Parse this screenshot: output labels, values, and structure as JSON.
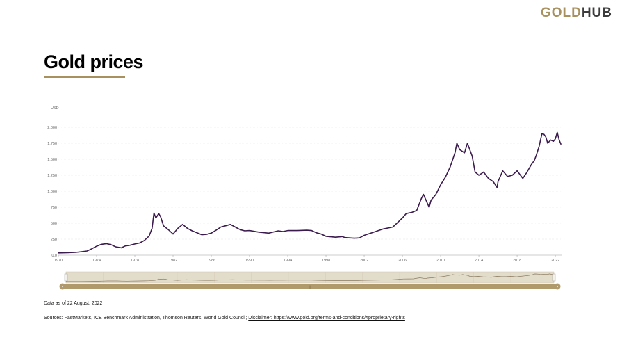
{
  "brand": {
    "part1": "GOLD",
    "part2": "HUB"
  },
  "page_title": "Gold prices",
  "notes": {
    "data_as_of": "Data as of 22 August, 2022",
    "sources_prefix": "Sources: FastMarkets, ICE Benchmark Administration, Thomson Reuters, World Gold Council; ",
    "disclaimer_link": "Disclaimer: https://www.gold.org/terms-and-conditions/#proprietary-rights"
  },
  "navigator": {
    "handle_label": "|||"
  },
  "colors": {
    "line": "#3b1a4e",
    "accent": "#a8915e",
    "navigator_bg": "#e2dccb",
    "scrollbar": "#b09a6b"
  },
  "chart_data": {
    "type": "line",
    "ylabel": "USD",
    "ylim": [
      0,
      2250
    ],
    "xlim": [
      1970,
      2022.65
    ],
    "y_ticks": [
      0,
      250,
      500,
      750,
      1000,
      1250,
      1500,
      1750,
      2000
    ],
    "y_tick_labels": [
      "0.0",
      "250",
      "500",
      "750",
      "1,000",
      "1,250",
      "1,500",
      "1,750",
      "2,000"
    ],
    "x_ticks": [
      1970,
      1974,
      1978,
      1982,
      1986,
      1990,
      1994,
      1998,
      2002,
      2006,
      2010,
      2014,
      2018,
      2022
    ],
    "x_tick_labels": [
      "1970",
      "1974",
      "1978",
      "1982",
      "1986",
      "1990",
      "1994",
      "1998",
      "2002",
      "2006",
      "2010",
      "2014",
      "2018",
      "2022"
    ],
    "grid": true,
    "legend": "none",
    "series": [
      {
        "x": [
          1970.0,
          1971.0,
          1971.8,
          1972.5,
          1973.0,
          1973.5,
          1974.0,
          1974.5,
          1975.0,
          1975.5,
          1976.0,
          1976.6,
          1977.0,
          1977.5,
          1978.0,
          1978.5,
          1979.0,
          1979.5,
          1979.8,
          1980.0,
          1980.2,
          1980.5,
          1980.7,
          1981.0,
          1981.5,
          1982.0,
          1982.5,
          1983.0,
          1983.5,
          1984.0,
          1984.5,
          1985.0,
          1985.5,
          1986.0,
          1986.5,
          1987.0,
          1987.5,
          1988.0,
          1988.5,
          1989.0,
          1989.5,
          1990.0,
          1991.0,
          1992.0,
          1993.0,
          1993.5,
          1994.0,
          1995.0,
          1996.0,
          1996.5,
          1997.0,
          1997.5,
          1998.0,
          1999.0,
          1999.7,
          2000.0,
          2001.0,
          2001.5,
          2002.0,
          2003.0,
          2004.0,
          2005.0,
          2006.0,
          2006.4,
          2007.0,
          2007.5,
          2008.0,
          2008.2,
          2008.8,
          2009.0,
          2009.5,
          2010.0,
          2010.5,
          2011.0,
          2011.5,
          2011.7,
          2012.0,
          2012.5,
          2012.8,
          2013.0,
          2013.3,
          2013.6,
          2014.0,
          2014.5,
          2015.0,
          2015.5,
          2015.9,
          2016.0,
          2016.5,
          2017.0,
          2017.5,
          2018.0,
          2018.6,
          2019.0,
          2019.5,
          2019.8,
          2020.0,
          2020.3,
          2020.6,
          2020.8,
          2021.0,
          2021.2,
          2021.5,
          2021.8,
          2022.0,
          2022.2,
          2022.4,
          2022.6
        ],
        "y": [
          35,
          39,
          43,
          55,
          65,
          100,
          140,
          170,
          180,
          165,
          130,
          115,
          145,
          155,
          175,
          190,
          230,
          300,
          420,
          660,
          580,
          650,
          600,
          460,
          400,
          330,
          420,
          480,
          420,
          380,
          350,
          320,
          325,
          345,
          390,
          440,
          460,
          480,
          440,
          400,
          380,
          385,
          360,
          345,
          380,
          370,
          385,
          385,
          390,
          385,
          350,
          330,
          295,
          280,
          290,
          275,
          265,
          270,
          310,
          360,
          410,
          440,
          580,
          650,
          670,
          700,
          890,
          950,
          750,
          860,
          950,
          1100,
          1220,
          1380,
          1600,
          1750,
          1650,
          1600,
          1750,
          1670,
          1550,
          1300,
          1250,
          1300,
          1200,
          1150,
          1060,
          1150,
          1320,
          1230,
          1250,
          1320,
          1200,
          1290,
          1420,
          1480,
          1560,
          1700,
          1900,
          1890,
          1850,
          1750,
          1800,
          1780,
          1820,
          1920,
          1800,
          1730
        ]
      }
    ]
  }
}
